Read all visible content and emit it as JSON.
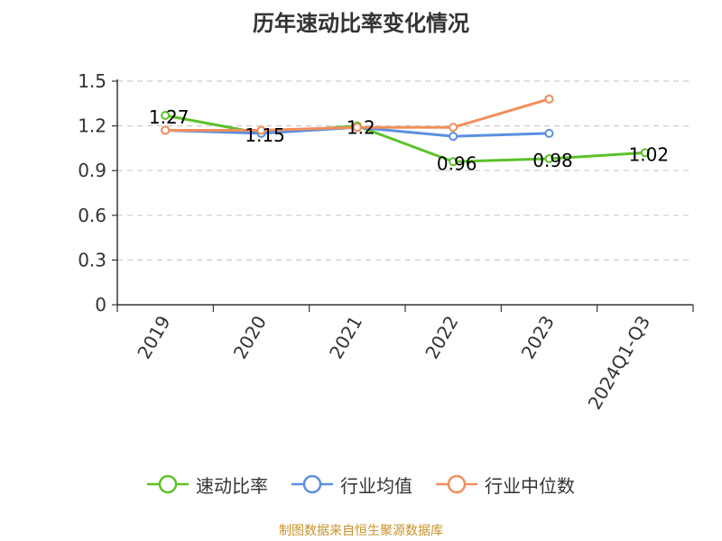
{
  "title": "历年速动比率变化情况",
  "footer": "制图数据来自恒生聚源数据库",
  "colors": {
    "grid": "#cccccc",
    "axis": "#333333",
    "text": "#333333"
  },
  "chart_data": {
    "type": "line",
    "title": "历年速动比率变化情况",
    "categories": [
      "2019",
      "2020",
      "2021",
      "2022",
      "2023",
      "2024Q1-Q3"
    ],
    "ylim": [
      0,
      1.5
    ],
    "yticks": [
      0,
      0.3,
      0.6,
      0.9,
      1.2,
      1.5
    ],
    "ytick_labels": [
      "0",
      "0.3",
      "0.6",
      "0.9",
      "1.2",
      "1.5"
    ],
    "grid": true,
    "legend_position": "bottom",
    "series": [
      {
        "name": "速动比率",
        "color": "#5cc12a",
        "values": [
          1.27,
          1.15,
          1.2,
          0.96,
          0.98,
          1.02
        ],
        "labels": [
          "1.27",
          "1.15",
          "1.2",
          "0.96",
          "0.98",
          "1.02"
        ]
      },
      {
        "name": "行业均值",
        "color": "#5b8fe0",
        "values": [
          1.17,
          1.15,
          1.19,
          1.13,
          1.15,
          null
        ]
      },
      {
        "name": "行业中位数",
        "color": "#f28e5c",
        "values": [
          1.17,
          1.17,
          1.19,
          1.19,
          1.38,
          null
        ]
      }
    ]
  }
}
